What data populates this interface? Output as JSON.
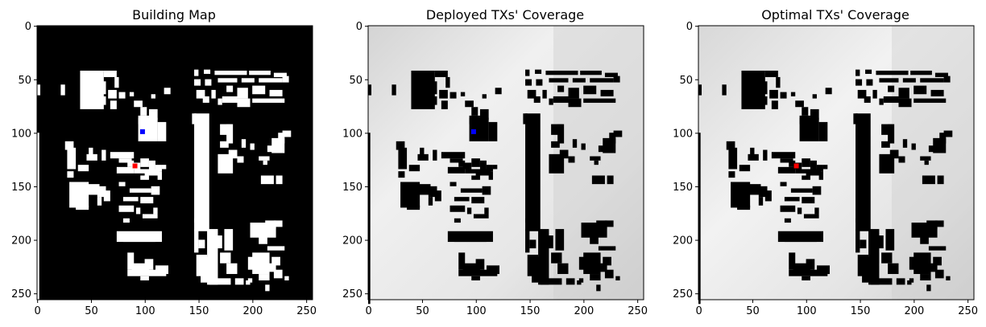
{
  "chart_data": [
    {
      "type": "heatmap",
      "title": "Building Map",
      "style": "binary",
      "xlim": [
        0,
        255
      ],
      "ylim": [
        255,
        0
      ],
      "xticks": [
        0,
        50,
        100,
        150,
        200,
        250
      ],
      "yticks": [
        0,
        50,
        100,
        150,
        200,
        250
      ],
      "markers": [
        {
          "label": "deployed_tx",
          "x": 98,
          "y": 99,
          "color": "#0000ff"
        },
        {
          "label": "optimal_tx",
          "x": 91,
          "y": 131,
          "color": "#ff0000"
        }
      ]
    },
    {
      "type": "heatmap",
      "title": "Deployed TXs' Coverage",
      "style": "coverage",
      "xlim": [
        0,
        255
      ],
      "ylim": [
        255,
        0
      ],
      "xticks": [
        0,
        50,
        100,
        150,
        200,
        250
      ],
      "yticks": [
        0,
        50,
        100,
        150,
        200,
        250
      ],
      "markers": [
        {
          "label": "deployed_tx",
          "x": 98,
          "y": 99,
          "color": "#0000ff"
        }
      ]
    },
    {
      "type": "heatmap",
      "title": "Optimal TXs' Coverage",
      "style": "coverage",
      "xlim": [
        0,
        255
      ],
      "ylim": [
        255,
        0
      ],
      "xticks": [
        0,
        50,
        100,
        150,
        200,
        250
      ],
      "yticks": [
        0,
        50,
        100,
        150,
        200,
        250
      ],
      "markers": [
        {
          "label": "optimal_tx",
          "x": 91,
          "y": 131,
          "color": "#ff0000"
        }
      ]
    }
  ],
  "buildings": [
    [
      0,
      55,
      3,
      10
    ],
    [
      0,
      100,
      2,
      160
    ],
    [
      22,
      55,
      4,
      10
    ],
    [
      40,
      42,
      22,
      36
    ],
    [
      62,
      42,
      12,
      6
    ],
    [
      72,
      48,
      4,
      10
    ],
    [
      56,
      52,
      8,
      12
    ],
    [
      66,
      60,
      8,
      8
    ],
    [
      58,
      66,
      6,
      8
    ],
    [
      68,
      70,
      6,
      8
    ],
    [
      76,
      62,
      6,
      6
    ],
    [
      86,
      62,
      4,
      4
    ],
    [
      118,
      58,
      6,
      6
    ],
    [
      106,
      64,
      4,
      4
    ],
    [
      90,
      70,
      8,
      6
    ],
    [
      96,
      76,
      6,
      8
    ],
    [
      94,
      84,
      10,
      8
    ],
    [
      104,
      78,
      8,
      10
    ],
    [
      94,
      86,
      18,
      22
    ],
    [
      112,
      90,
      8,
      18
    ],
    [
      146,
      41,
      4,
      6
    ],
    [
      155,
      41,
      6,
      4
    ],
    [
      165,
      42,
      30,
      4
    ],
    [
      197,
      42,
      20,
      4
    ],
    [
      220,
      44,
      12,
      4
    ],
    [
      146,
      50,
      6,
      6
    ],
    [
      156,
      50,
      6,
      6
    ],
    [
      168,
      49,
      18,
      4
    ],
    [
      190,
      49,
      12,
      4
    ],
    [
      206,
      49,
      22,
      4
    ],
    [
      228,
      47,
      6,
      6
    ],
    [
      148,
      60,
      8,
      8
    ],
    [
      162,
      60,
      4,
      8
    ],
    [
      176,
      56,
      6,
      6
    ],
    [
      186,
      58,
      10,
      10
    ],
    [
      200,
      56,
      12,
      8
    ],
    [
      216,
      60,
      12,
      6
    ],
    [
      154,
      66,
      6,
      6
    ],
    [
      168,
      68,
      4,
      6
    ],
    [
      172,
      66,
      14,
      6
    ],
    [
      186,
      68,
      12,
      8
    ],
    [
      200,
      68,
      30,
      4
    ],
    [
      144,
      82,
      4,
      10
    ],
    [
      146,
      82,
      14,
      110
    ],
    [
      150,
      108,
      6,
      4
    ],
    [
      148,
      132,
      10,
      8
    ],
    [
      146,
      180,
      2,
      4
    ],
    [
      150,
      200,
      6,
      8
    ],
    [
      170,
      92,
      10,
      10
    ],
    [
      176,
      92,
      6,
      18
    ],
    [
      170,
      108,
      8,
      6
    ],
    [
      190,
      106,
      4,
      8
    ],
    [
      198,
      110,
      4,
      6
    ],
    [
      218,
      105,
      12,
      14
    ],
    [
      224,
      100,
      6,
      10
    ],
    [
      228,
      98,
      8,
      6
    ],
    [
      214,
      112,
      8,
      6
    ],
    [
      168,
      120,
      14,
      18
    ],
    [
      178,
      116,
      8,
      8
    ],
    [
      186,
      122,
      6,
      6
    ],
    [
      206,
      122,
      10,
      4
    ],
    [
      210,
      126,
      4,
      4
    ],
    [
      208,
      140,
      12,
      8
    ],
    [
      222,
      140,
      6,
      8
    ],
    [
      26,
      108,
      8,
      8
    ],
    [
      28,
      114,
      8,
      20
    ],
    [
      48,
      114,
      4,
      8
    ],
    [
      46,
      120,
      10,
      6
    ],
    [
      60,
      116,
      4,
      10
    ],
    [
      68,
      118,
      22,
      6
    ],
    [
      76,
      124,
      12,
      4
    ],
    [
      84,
      126,
      6,
      6
    ],
    [
      88,
      128,
      8,
      6
    ],
    [
      96,
      124,
      8,
      8
    ],
    [
      104,
      128,
      4,
      4
    ],
    [
      110,
      130,
      6,
      6
    ],
    [
      116,
      130,
      4,
      4
    ],
    [
      74,
      132,
      16,
      6
    ],
    [
      90,
      134,
      12,
      4
    ],
    [
      100,
      134,
      14,
      6
    ],
    [
      96,
      140,
      8,
      4
    ],
    [
      104,
      126,
      6,
      10
    ],
    [
      112,
      136,
      4,
      8
    ],
    [
      28,
      136,
      6,
      6
    ],
    [
      38,
      130,
      10,
      6
    ],
    [
      30,
      146,
      18,
      24
    ],
    [
      44,
      148,
      14,
      10
    ],
    [
      36,
      168,
      12,
      4
    ],
    [
      56,
      150,
      8,
      10
    ],
    [
      62,
      154,
      6,
      10
    ],
    [
      56,
      160,
      4,
      8
    ],
    [
      76,
      146,
      6,
      4
    ],
    [
      86,
      152,
      20,
      4
    ],
    [
      106,
      150,
      8,
      8
    ],
    [
      80,
      160,
      14,
      4
    ],
    [
      96,
      160,
      12,
      6
    ],
    [
      76,
      168,
      14,
      6
    ],
    [
      92,
      170,
      4,
      6
    ],
    [
      98,
      176,
      14,
      4
    ],
    [
      108,
      170,
      4,
      6
    ],
    [
      80,
      180,
      6,
      4
    ],
    [
      74,
      192,
      42,
      10
    ],
    [
      80,
      196,
      30,
      6
    ],
    [
      84,
      212,
      6,
      16
    ],
    [
      88,
      222,
      16,
      8
    ],
    [
      100,
      218,
      8,
      10
    ],
    [
      110,
      224,
      12,
      8
    ],
    [
      84,
      228,
      36,
      6
    ],
    [
      96,
      234,
      8,
      4
    ],
    [
      146,
      190,
      4,
      22
    ],
    [
      148,
      214,
      10,
      20
    ],
    [
      152,
      216,
      8,
      24
    ],
    [
      158,
      190,
      10,
      52
    ],
    [
      166,
      196,
      6,
      12
    ],
    [
      174,
      190,
      8,
      20
    ],
    [
      170,
      212,
      10,
      10
    ],
    [
      176,
      222,
      10,
      10
    ],
    [
      160,
      236,
      20,
      6
    ],
    [
      184,
      236,
      8,
      6
    ],
    [
      194,
      238,
      4,
      4
    ],
    [
      198,
      184,
      24,
      14
    ],
    [
      212,
      182,
      10,
      8
    ],
    [
      206,
      194,
      8,
      10
    ],
    [
      220,
      182,
      8,
      6
    ],
    [
      214,
      206,
      16,
      4
    ],
    [
      200,
      212,
      16,
      20
    ],
    [
      196,
      216,
      8,
      12
    ],
    [
      212,
      222,
      10,
      8
    ],
    [
      218,
      216,
      8,
      8
    ],
    [
      220,
      228,
      8,
      8
    ],
    [
      206,
      232,
      10,
      6
    ],
    [
      196,
      236,
      4,
      4
    ],
    [
      212,
      242,
      4,
      6
    ],
    [
      230,
      234,
      4,
      4
    ]
  ]
}
